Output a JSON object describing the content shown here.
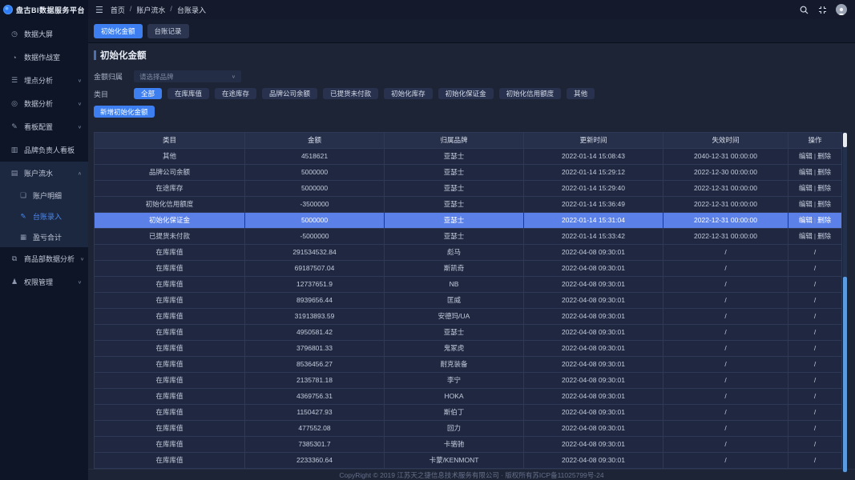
{
  "topbar": {
    "logo_text": "盘古BI数据服务平台",
    "breadcrumb": [
      "首页",
      "账户流水",
      "台账录入"
    ],
    "icons": [
      {
        "name": "menu-fold-icon",
        "glyph": "☰"
      },
      {
        "name": "search-icon",
        "glyph": "magnifier"
      },
      {
        "name": "exit-fullscreen-icon",
        "glyph": "compress-arrows"
      },
      {
        "name": "avatar",
        "glyph": "person"
      }
    ]
  },
  "sidebar": {
    "items": [
      {
        "label": "数据大屏",
        "icon": "dashboard-icon",
        "glyph": "◷"
      },
      {
        "label": "数据作战室",
        "icon": "warroom-icon",
        "glyph": "◔"
      },
      {
        "label": "埋点分析",
        "icon": "list-icon",
        "glyph": "☰",
        "chevron": "down"
      },
      {
        "label": "数据分析",
        "icon": "target-icon",
        "glyph": "◎",
        "chevron": "down"
      },
      {
        "label": "看板配置",
        "icon": "edit-square-icon",
        "glyph": "✎",
        "chevron": "down"
      },
      {
        "label": "品牌负责人看板",
        "icon": "bar-chart-icon",
        "glyph": "▥"
      },
      {
        "label": "账户流水",
        "icon": "book-icon",
        "glyph": "▤",
        "chevron": "up",
        "expanded": true,
        "children": [
          {
            "label": "账户明细",
            "icon": "detail-icon",
            "glyph": "❏",
            "active": false
          },
          {
            "label": "台账录入",
            "icon": "pen-icon",
            "glyph": "✎",
            "active": true
          },
          {
            "label": "盈亏合计",
            "icon": "grid-icon",
            "glyph": "▦",
            "active": false
          }
        ]
      },
      {
        "label": "商品部数据分析",
        "icon": "files-icon",
        "glyph": "⧉",
        "chevron": "down"
      },
      {
        "label": "权限管理",
        "icon": "user-icon",
        "glyph": "♟",
        "chevron": "down"
      }
    ]
  },
  "tabs": [
    {
      "label": "初始化金额",
      "active": true
    },
    {
      "label": "台账记录",
      "active": false
    }
  ],
  "page": {
    "title": "初始化金额",
    "form": {
      "amount_owner_label": "金额归属",
      "select_placeholder": "请选择品牌",
      "category_label": "类目",
      "category_options": [
        "全部",
        "在库库值",
        "在途库存",
        "品牌公司余额",
        "已提货未付款",
        "初始化库存",
        "初始化保证金",
        "初始化信用额度",
        "其他"
      ],
      "active_category": "全部",
      "add_button_label": "新增初始化金额"
    },
    "table": {
      "headers": [
        "类目",
        "金额",
        "归属品牌",
        "更新时间",
        "失效时间",
        "操作"
      ],
      "col_widths": [
        "188px",
        "174px",
        "174px",
        "174px",
        "156px",
        "67px"
      ],
      "action_edit": "编辑",
      "action_delete": "删除",
      "slash": "/",
      "rows": [
        {
          "category": "其他",
          "amount": "4518621",
          "brand": "亚瑟士",
          "updated": "2022-01-14 15:08:43",
          "expires": "2040-12-31 00:00:00",
          "actions": true,
          "highlight": false
        },
        {
          "category": "品牌公司余额",
          "amount": "5000000",
          "brand": "亚瑟士",
          "updated": "2022-01-14 15:29:12",
          "expires": "2022-12-30 00:00:00",
          "actions": true,
          "highlight": false
        },
        {
          "category": "在途库存",
          "amount": "5000000",
          "brand": "亚瑟士",
          "updated": "2022-01-14 15:29:40",
          "expires": "2022-12-31 00:00:00",
          "actions": true,
          "highlight": false
        },
        {
          "category": "初始化信用额度",
          "amount": "-3500000",
          "brand": "亚瑟士",
          "updated": "2022-01-14 15:36:49",
          "expires": "2022-12-31 00:00:00",
          "actions": true,
          "highlight": false
        },
        {
          "category": "初始化保证金",
          "amount": "5000000",
          "brand": "亚瑟士",
          "updated": "2022-01-14 15:31:04",
          "expires": "2022-12-31 00:00:00",
          "actions": true,
          "highlight": true
        },
        {
          "category": "已提货未付款",
          "amount": "-5000000",
          "brand": "亚瑟士",
          "updated": "2022-01-14 15:33:42",
          "expires": "2022-12-31 00:00:00",
          "actions": true,
          "highlight": false
        },
        {
          "category": "在库库值",
          "amount": "291534532.84",
          "brand": "彪马",
          "updated": "2022-04-08 09:30:01",
          "expires": "/",
          "actions": false,
          "highlight": false
        },
        {
          "category": "在库库值",
          "amount": "69187507.04",
          "brand": "斯凯奇",
          "updated": "2022-04-08 09:30:01",
          "expires": "/",
          "actions": false,
          "highlight": false
        },
        {
          "category": "在库库值",
          "amount": "12737651.9",
          "brand": "NB",
          "updated": "2022-04-08 09:30:01",
          "expires": "/",
          "actions": false,
          "highlight": false
        },
        {
          "category": "在库库值",
          "amount": "8939656.44",
          "brand": "匡威",
          "updated": "2022-04-08 09:30:01",
          "expires": "/",
          "actions": false,
          "highlight": false
        },
        {
          "category": "在库库值",
          "amount": "31913893.59",
          "brand": "安德玛/UA",
          "updated": "2022-04-08 09:30:01",
          "expires": "/",
          "actions": false,
          "highlight": false
        },
        {
          "category": "在库库值",
          "amount": "4950581.42",
          "brand": "亚瑟士",
          "updated": "2022-04-08 09:30:01",
          "expires": "/",
          "actions": false,
          "highlight": false
        },
        {
          "category": "在库库值",
          "amount": "3796801.33",
          "brand": "鬼冢虎",
          "updated": "2022-04-08 09:30:01",
          "expires": "/",
          "actions": false,
          "highlight": false
        },
        {
          "category": "在库库值",
          "amount": "8536456.27",
          "brand": "耐克装备",
          "updated": "2022-04-08 09:30:01",
          "expires": "/",
          "actions": false,
          "highlight": false
        },
        {
          "category": "在库库值",
          "amount": "2135781.18",
          "brand": "李宁",
          "updated": "2022-04-08 09:30:01",
          "expires": "/",
          "actions": false,
          "highlight": false
        },
        {
          "category": "在库库值",
          "amount": "4369756.31",
          "brand": "HOKA",
          "updated": "2022-04-08 09:30:01",
          "expires": "/",
          "actions": false,
          "highlight": false
        },
        {
          "category": "在库库值",
          "amount": "1150427.93",
          "brand": "斯伯丁",
          "updated": "2022-04-08 09:30:01",
          "expires": "/",
          "actions": false,
          "highlight": false
        },
        {
          "category": "在库库值",
          "amount": "477552.08",
          "brand": "回力",
          "updated": "2022-04-08 09:30:01",
          "expires": "/",
          "actions": false,
          "highlight": false
        },
        {
          "category": "在库库值",
          "amount": "7385301.7",
          "brand": "卡骆驰",
          "updated": "2022-04-08 09:30:01",
          "expires": "/",
          "actions": false,
          "highlight": false
        },
        {
          "category": "在库库值",
          "amount": "2233360.64",
          "brand": "卡蒙/KENMONT",
          "updated": "2022-04-08 09:30:01",
          "expires": "/",
          "actions": false,
          "highlight": false
        }
      ]
    }
  },
  "footer": {
    "copyright": "CopyRight © 2019 江苏天之捷信息技术服务有限公司 · 版权所有苏ICP备11025799号-24"
  },
  "colors": {
    "accent_blue": "#3d7ff0",
    "row_highlight": "#5b80e8",
    "sidebar_bg": "#0d1527",
    "topbar_bg": "#141a2b",
    "content_bg": "#1c2436"
  }
}
